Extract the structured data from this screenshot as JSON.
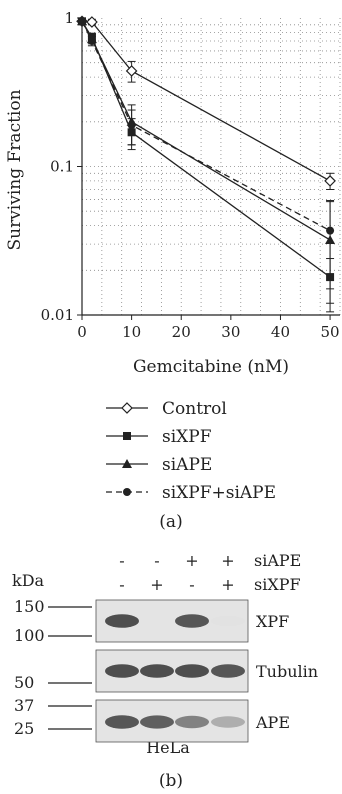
{
  "chart_data": {
    "type": "line",
    "panel_label": "(a)",
    "xlabel": "Gemcitabine (nM)",
    "ylabel": "Surviving Fraction",
    "xscale": "linear",
    "yscale": "log",
    "xlim": [
      0,
      52
    ],
    "ylim": [
      0.01,
      1
    ],
    "xticks": [
      "0",
      "10",
      "20",
      "30",
      "40",
      "50"
    ],
    "yticks": [
      "0.01",
      "0.1",
      "1"
    ],
    "grid": "dotted",
    "legend_position": "below",
    "x": [
      0,
      2,
      10,
      50
    ],
    "series": [
      {
        "name": "Control",
        "marker": "diamond-open",
        "line": "solid",
        "values": [
          0.95,
          0.94,
          0.44,
          0.08
        ],
        "err": [
          0.04,
          0.04,
          0.07,
          0.01
        ]
      },
      {
        "name": "siXPF",
        "marker": "square",
        "line": "solid",
        "values": [
          0.95,
          0.74,
          0.17,
          0.018
        ],
        "err": [
          0.04,
          0.05,
          0.04,
          0.006
        ]
      },
      {
        "name": "siAPE",
        "marker": "triangle",
        "line": "solid",
        "values": [
          0.95,
          0.72,
          0.2,
          0.032
        ],
        "err": [
          0.04,
          0.05,
          0.06,
          0.026
        ]
      },
      {
        "name": "siXPF+siAPE",
        "marker": "circle",
        "line": "dashed",
        "values": [
          0.95,
          0.7,
          0.19,
          0.037
        ],
        "err": [
          0.04,
          0.05,
          0.05,
          0.022
        ]
      }
    ]
  },
  "blot": {
    "panel_label": "(b)",
    "unit_label": "kDa",
    "cell_line": "HeLa",
    "condition_rows": [
      {
        "label": "siAPE",
        "signs": [
          "-",
          "-",
          "+",
          "+"
        ]
      },
      {
        "label": "siXPF",
        "signs": [
          "-",
          "+",
          "-",
          "+"
        ]
      }
    ],
    "markers": [
      "150",
      "100",
      "50",
      "37",
      "25"
    ],
    "panels": [
      {
        "label": "XPF",
        "band_intensity": [
          0.9,
          0.0,
          0.85,
          0.05
        ]
      },
      {
        "label": "Tubulin",
        "band_intensity": [
          0.9,
          0.9,
          0.9,
          0.85
        ]
      },
      {
        "label": "APE",
        "band_intensity": [
          0.85,
          0.8,
          0.6,
          0.35
        ]
      }
    ]
  }
}
